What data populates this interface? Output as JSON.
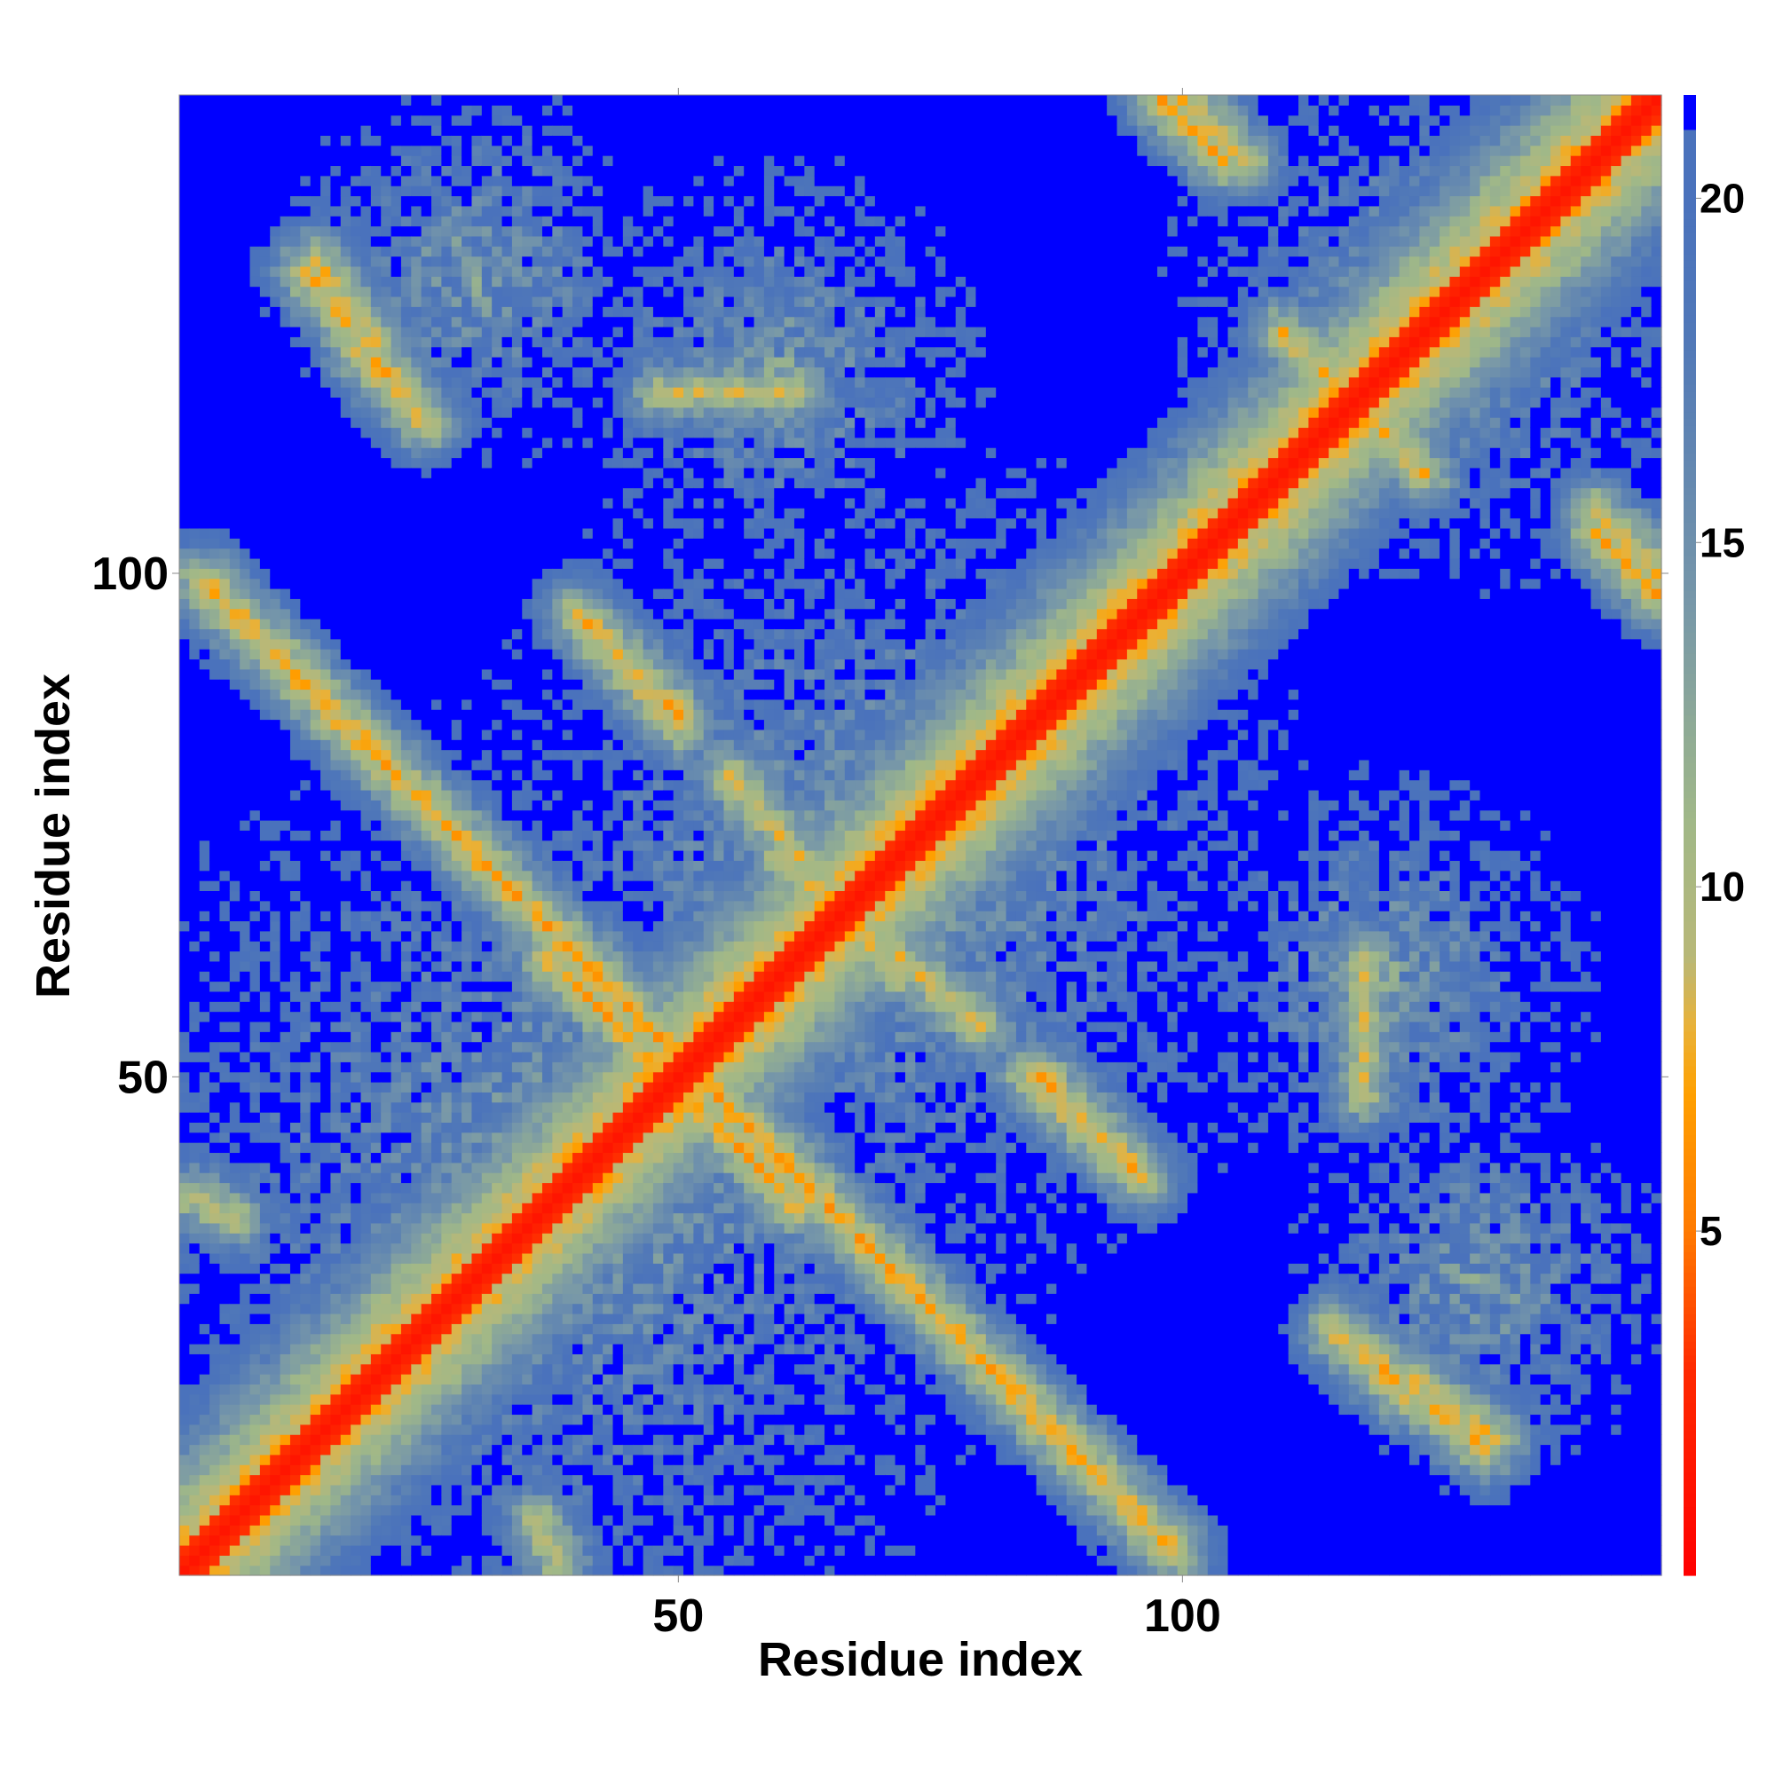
{
  "chart_data": {
    "type": "heatmap",
    "title": "",
    "xlabel": "Residue index",
    "ylabel": "Residue index",
    "n_residues": 147,
    "xlim": [
      1,
      147
    ],
    "ylim": [
      1,
      147
    ],
    "x_ticks": [
      50,
      100
    ],
    "y_ticks": [
      50,
      100
    ],
    "colorbar": {
      "range": [
        0,
        21.5
      ],
      "ticks": [
        5,
        10,
        15,
        20
      ],
      "placement": "right",
      "stops": [
        {
          "value": 0.0,
          "color": "#ff0000"
        },
        {
          "value": 3.0,
          "color": "#ff2a00"
        },
        {
          "value": 5.0,
          "color": "#ff7a00"
        },
        {
          "value": 7.0,
          "color": "#ffa000"
        },
        {
          "value": 8.0,
          "color": "#e8b23a"
        },
        {
          "value": 9.0,
          "color": "#b8b878"
        },
        {
          "value": 11.0,
          "color": "#a0b888"
        },
        {
          "value": 14.0,
          "color": "#7898a8"
        },
        {
          "value": 18.0,
          "color": "#5078b8"
        },
        {
          "value": 20.0,
          "color": "#4a72bc"
        },
        {
          "value": 21.0,
          "color": "#0000ff"
        },
        {
          "value": 21.5,
          "color": "#0000ff"
        }
      ]
    },
    "cutoff_value": 21.0,
    "diagonal_band_width": 2,
    "contact_features": [
      {
        "kind": "anti_diagonal",
        "from": [
          3,
          99
        ],
        "to": [
          99,
          3
        ],
        "min_distance": 5.5
      },
      {
        "kind": "anti_diagonal",
        "from": [
          40,
          96
        ],
        "to": [
          50,
          86
        ],
        "min_distance": 6.0
      },
      {
        "kind": "anti_diagonal",
        "from": [
          51,
          48
        ],
        "to": [
          62,
          37
        ],
        "min_distance": 6.0
      },
      {
        "kind": "anti_diagonal",
        "from": [
          60,
          72
        ],
        "to": [
          80,
          55
        ],
        "min_distance": 6.5
      },
      {
        "kind": "anti_diagonal",
        "from": [
          85,
          50
        ],
        "to": [
          96,
          40
        ],
        "min_distance": 6.0
      },
      {
        "kind": "anti_diagonal",
        "from": [
          13,
          130
        ],
        "to": [
          25,
          115
        ],
        "min_distance": 6.0
      },
      {
        "kind": "anti_diagonal",
        "from": [
          110,
          124
        ],
        "to": [
          118,
          116
        ],
        "min_distance": 6.5
      },
      {
        "kind": "anti_diagonal",
        "from": [
          100,
          147
        ],
        "to": [
          106,
          141
        ],
        "min_distance": 6.0
      },
      {
        "kind": "anti_diagonal",
        "from": [
          115,
          25
        ],
        "to": [
          122,
          18
        ],
        "min_distance": 6.5
      },
      {
        "kind": "anti_diagonal",
        "from": [
          123,
          20
        ],
        "to": [
          131,
          14
        ],
        "min_distance": 6.5
      },
      {
        "kind": "anti_diagonal",
        "from": [
          141,
          104
        ],
        "to": [
          147,
          98
        ],
        "min_distance": 6.0
      },
      {
        "kind": "parallel",
        "from": [
          118,
          62
        ],
        "to": [
          118,
          48
        ],
        "min_distance": 7.5
      },
      {
        "kind": "parallel",
        "from": [
          36,
          6
        ],
        "to": [
          38,
          2
        ],
        "min_distance": 7.0
      },
      {
        "kind": "parallel",
        "from": [
          2,
          38
        ],
        "to": [
          6,
          36
        ],
        "min_distance": 7.0
      }
    ],
    "globular_blocks": [
      {
        "center": [
          40,
          40
        ],
        "radius": 50
      },
      {
        "center": [
          70,
          70
        ],
        "radius": 45
      },
      {
        "center": [
          125,
          125
        ],
        "radius": 28
      },
      {
        "center": [
          120,
          60
        ],
        "radius": 22
      },
      {
        "center": [
          60,
          120
        ],
        "radius": 22
      },
      {
        "center": [
          30,
          130
        ],
        "radius": 20
      },
      {
        "center": [
          130,
          30
        ],
        "radius": 20
      }
    ]
  }
}
